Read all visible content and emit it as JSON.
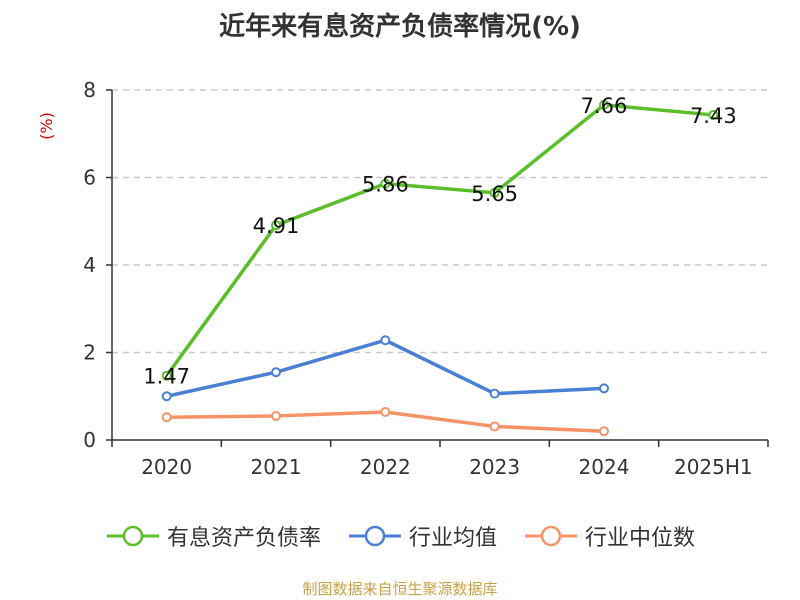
{
  "chart_data": {
    "type": "line",
    "title": "近年来有息资产负债率情况(%)",
    "ylabel": "(%)",
    "xlabel": "",
    "categories": [
      "2020",
      "2021",
      "2022",
      "2023",
      "2024",
      "2025H1"
    ],
    "ylim": [
      0,
      8
    ],
    "yticks": [
      0,
      2,
      4,
      6,
      8
    ],
    "grid": "horizontal dashed",
    "legend_position": "bottom",
    "series": [
      {
        "name": "有息资产负债率",
        "color": "#5cbd2b",
        "values": [
          1.47,
          4.91,
          5.86,
          5.65,
          7.66,
          7.43
        ],
        "labels": [
          "1.47",
          "4.91",
          "5.86",
          "5.65",
          "7.66",
          "7.43"
        ]
      },
      {
        "name": "行业均值",
        "color": "#4a7fd6",
        "values": [
          1.0,
          1.55,
          2.28,
          1.06,
          1.18,
          null
        ]
      },
      {
        "name": "行业中位数",
        "color": "#f59366",
        "values": [
          0.52,
          0.55,
          0.64,
          0.31,
          0.2,
          null
        ]
      }
    ],
    "source": "制图数据来自恒生聚源数据库"
  }
}
